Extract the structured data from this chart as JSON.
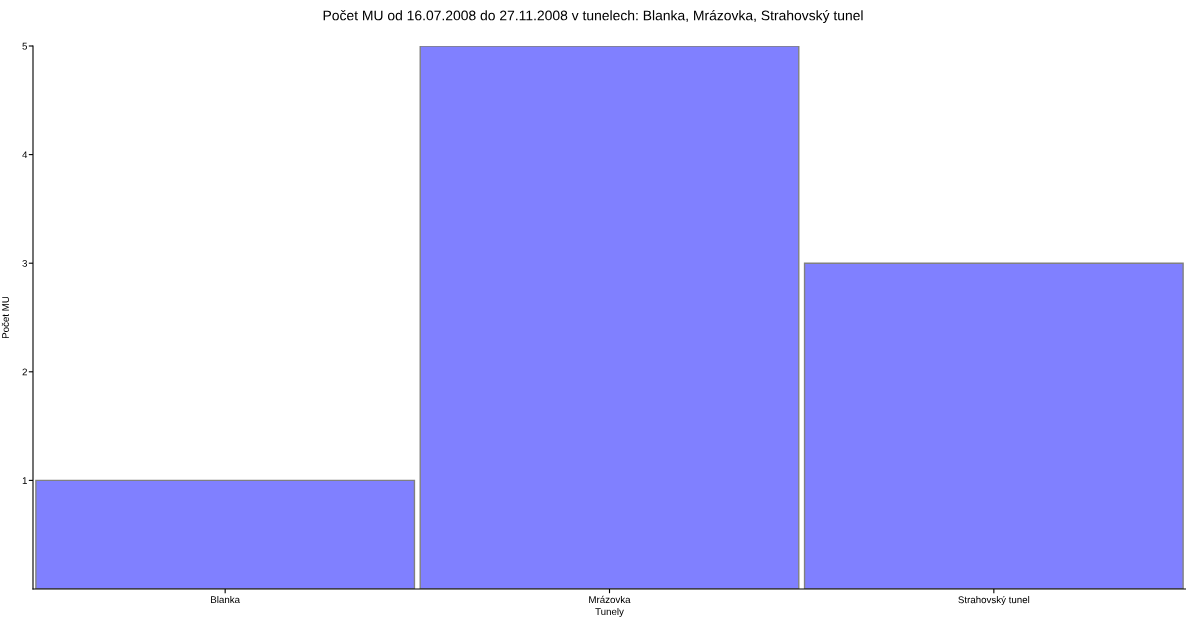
{
  "chart_data": {
    "type": "bar",
    "title": "Počet MU od 16.07.2008 do 27.11.2008 v tunelech: Blanka, Mrázovka, Strahovský tunel",
    "xlabel": "Tunely",
    "ylabel": "Počet MU",
    "categories": [
      "Blanka",
      "Mrázovka",
      "Strahovský tunel"
    ],
    "values": [
      1,
      5,
      3
    ],
    "color": "#8080ff",
    "ylim": [
      0,
      5
    ],
    "yticks": [
      1,
      2,
      3,
      4,
      5
    ],
    "grid": false,
    "legend": false
  }
}
